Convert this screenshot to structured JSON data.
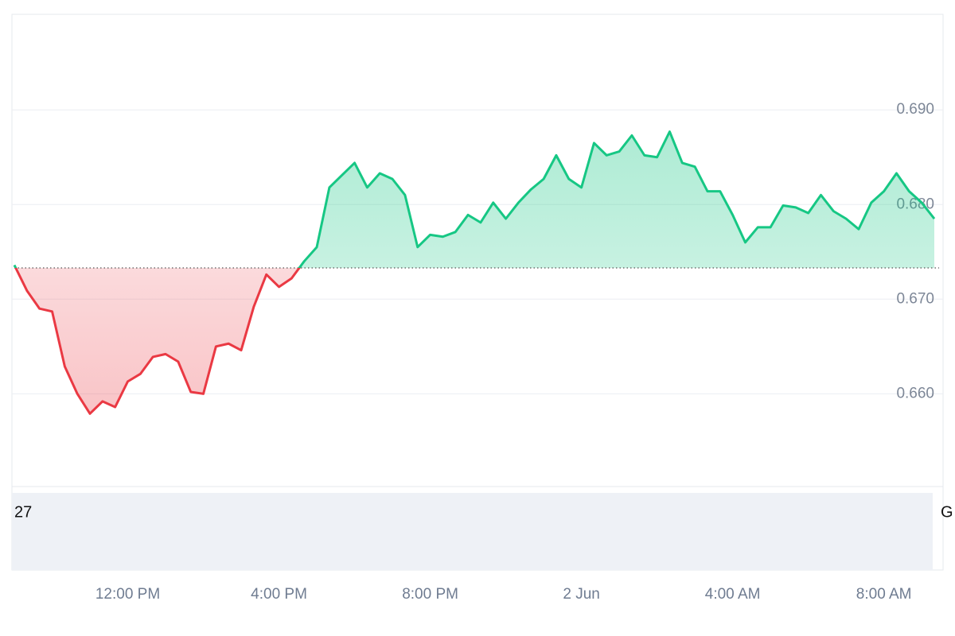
{
  "chart_data": {
    "type": "line",
    "categories": [
      null,
      null,
      null,
      null,
      null,
      null,
      null,
      null,
      null,
      "12:00 PM",
      null,
      null,
      null,
      null,
      null,
      null,
      null,
      null,
      null,
      null,
      null,
      "4:00 PM",
      null,
      null,
      null,
      null,
      null,
      null,
      null,
      null,
      null,
      null,
      null,
      "8:00 PM",
      null,
      null,
      null,
      null,
      null,
      null,
      null,
      null,
      null,
      null,
      null,
      "2 Jun",
      null,
      null,
      null,
      null,
      null,
      null,
      null,
      null,
      null,
      null,
      null,
      "4:00 AM",
      null,
      null,
      null,
      null,
      null,
      null,
      null,
      null,
      null,
      null,
      null,
      "8:00 AM",
      null,
      null,
      null,
      null
    ],
    "values": [
      0.6736,
      0.6709,
      0.669,
      0.6687,
      0.6629,
      0.66,
      0.6579,
      0.6592,
      0.6586,
      0.6613,
      0.6621,
      0.6639,
      0.6642,
      0.6634,
      0.6602,
      0.66,
      0.665,
      0.6653,
      0.6646,
      0.6692,
      0.6726,
      0.6713,
      0.6722,
      0.674,
      0.6755,
      0.6818,
      0.6831,
      0.6844,
      0.6818,
      0.6833,
      0.6827,
      0.681,
      0.6755,
      0.6768,
      0.6766,
      0.6771,
      0.6789,
      0.6781,
      0.6802,
      0.6785,
      0.6802,
      0.6816,
      0.6827,
      0.6852,
      0.6827,
      0.6818,
      0.6865,
      0.6852,
      0.6856,
      0.6873,
      0.6852,
      0.685,
      0.6877,
      0.6844,
      0.684,
      0.6814,
      0.6814,
      0.6789,
      0.676,
      0.6776,
      0.6776,
      0.6799,
      0.6797,
      0.6791,
      0.681,
      0.6793,
      0.6785,
      0.6774,
      0.6802,
      0.6814,
      0.6833,
      0.6814,
      0.6802,
      0.6785
    ],
    "baseline": 0.6733,
    "up_color": "#16c784",
    "down_color": "#ea3943",
    "ylim": [
      0.6502,
      0.7001
    ],
    "yticks": [
      {
        "value": 0.66,
        "label": "0.660"
      },
      {
        "value": 0.67,
        "label": "0.670"
      },
      {
        "value": 0.68,
        "label": "0.680"
      },
      {
        "value": 0.69,
        "label": "0.690"
      }
    ],
    "grid": true,
    "volume_labels": [
      "27",
      "G"
    ]
  }
}
